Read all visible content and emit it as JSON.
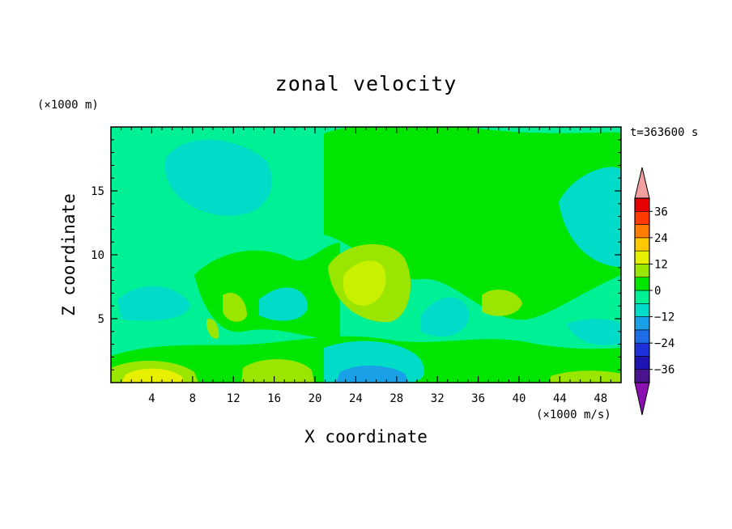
{
  "chart_data": {
    "type": "heatmap",
    "title": "zonal velocity",
    "xlabel": "X coordinate",
    "ylabel": "Z coordinate",
    "x_unit": "(×1000 m/s)",
    "y_unit": "(×1000 m)",
    "time_label": "t=363600 s",
    "xlim": [
      0,
      50
    ],
    "ylim": [
      0,
      20
    ],
    "x_ticks": [
      4,
      8,
      12,
      16,
      20,
      24,
      28,
      32,
      36,
      40,
      44,
      48
    ],
    "y_ticks": [
      5,
      10,
      15
    ],
    "grid": false,
    "colorbar": {
      "ticks": [
        36,
        24,
        12,
        0,
        -12,
        -24,
        -36
      ],
      "levels": [
        -42,
        -36,
        -30,
        -24,
        -18,
        -12,
        -6,
        0,
        6,
        12,
        18,
        24,
        30,
        36,
        42
      ],
      "colors": [
        "#8a10b0",
        "#4b148f",
        "#1e14b4",
        "#1e32dc",
        "#1e6ee8",
        "#1aa0e6",
        "#00dcc8",
        "#00f096",
        "#00e600",
        "#9be600",
        "#e6f000",
        "#ffc800",
        "#ff7d00",
        "#ff3a00",
        "#e60000",
        "#f0a0a0"
      ],
      "placement": "right"
    },
    "field_regions": [
      {
        "name": "upper-left negative cell",
        "x": [
          5,
          16
        ],
        "z": [
          12,
          19.5
        ],
        "value": -8
      },
      {
        "name": "right edge negative cell",
        "x": [
          44,
          50
        ],
        "z": [
          9,
          16
        ],
        "value": -8
      },
      {
        "name": "lower-left surface jet",
        "x": [
          0,
          9
        ],
        "z": [
          0,
          1.5
        ],
        "value": 15
      },
      {
        "name": "central positive cell",
        "x": [
          22,
          29
        ],
        "z": [
          5,
          10
        ],
        "value": 10
      },
      {
        "name": "surface negative cell",
        "x": [
          23,
          29
        ],
        "z": [
          0,
          1
        ],
        "value": -14
      },
      {
        "name": "lower-center positive cell",
        "x": [
          13,
          19
        ],
        "z": [
          0,
          2
        ],
        "value": 8
      },
      {
        "name": "positive cell near x=38",
        "x": [
          37,
          41
        ],
        "z": [
          5,
          7
        ],
        "value": 8
      }
    ]
  }
}
